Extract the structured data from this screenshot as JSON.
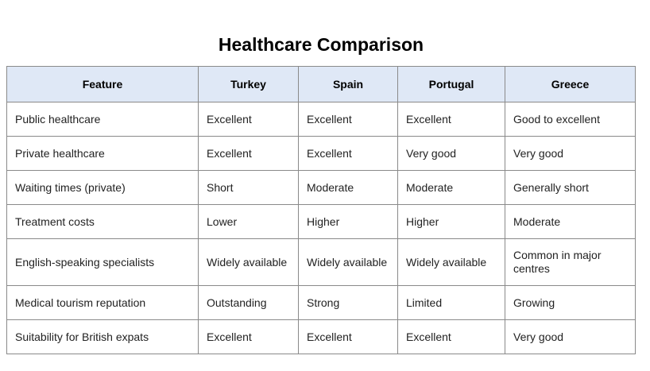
{
  "title": "Healthcare Comparison",
  "columns": [
    "Feature",
    "Turkey",
    "Spain",
    "Portugal",
    "Greece"
  ],
  "rows": [
    [
      "Public healthcare",
      "Excellent",
      "Excellent",
      "Excellent",
      "Good to excellent"
    ],
    [
      "Private healthcare",
      "Excellent",
      "Excellent",
      "Very good",
      "Very good"
    ],
    [
      "Waiting times (private)",
      "Short",
      "Moderate",
      "Moderate",
      "Generally short"
    ],
    [
      "Treatment costs",
      "Lower",
      "Higher",
      "Higher",
      "Moderate"
    ],
    [
      "English-speaking specialists",
      "Widely available",
      "Widely available",
      "Widely available",
      "Common in major centres"
    ],
    [
      "Medical tourism reputation",
      "Outstanding",
      "Strong",
      "Limited",
      "Growing"
    ],
    [
      "Suitability for British expats",
      "Excellent",
      "Excellent",
      "Excellent",
      "Very good"
    ]
  ],
  "colors": {
    "header_background": "#dfe8f6",
    "border": "#8a8a8a",
    "outer_border": "#333333",
    "text": "#222222"
  }
}
